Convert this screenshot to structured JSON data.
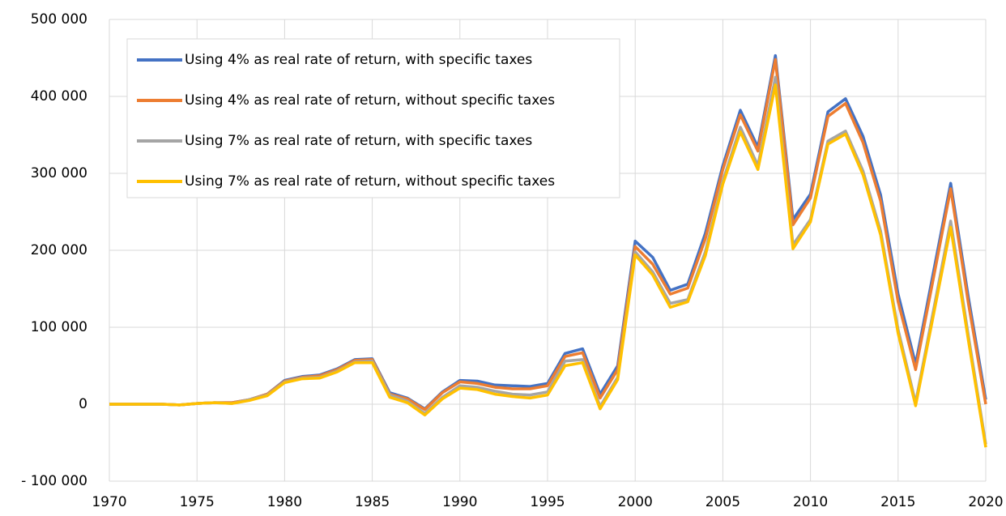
{
  "chart_data": {
    "type": "line",
    "x": [
      1970,
      1971,
      1972,
      1973,
      1974,
      1975,
      1976,
      1977,
      1978,
      1979,
      1980,
      1981,
      1982,
      1983,
      1984,
      1985,
      1986,
      1987,
      1988,
      1989,
      1990,
      1991,
      1992,
      1993,
      1994,
      1995,
      1996,
      1997,
      1998,
      1999,
      2000,
      2001,
      2002,
      2003,
      2004,
      2005,
      2006,
      2007,
      2008,
      2009,
      2010,
      2011,
      2012,
      2013,
      2014,
      2015,
      2016,
      2017,
      2018,
      2019,
      2020
    ],
    "series": [
      {
        "name": "Using 4% as real rate of return, with specific taxes",
        "color": "#4472c4",
        "values": [
          0,
          0,
          0,
          0,
          -1000,
          1000,
          2000,
          2000,
          6000,
          13000,
          31000,
          36000,
          38000,
          46000,
          58000,
          59000,
          15000,
          8000,
          -6000,
          16000,
          31000,
          30000,
          25000,
          24000,
          23000,
          27000,
          66000,
          72000,
          13000,
          50000,
          212000,
          191000,
          148000,
          156000,
          222000,
          310000,
          382000,
          334000,
          453000,
          240000,
          273000,
          380000,
          397000,
          348000,
          272000,
          143000,
          52000,
          170000,
          287000,
          140000,
          6000
        ]
      },
      {
        "name": "Using 4% as real rate of return, without specific taxes",
        "color": "#ed7d31",
        "values": [
          0,
          0,
          0,
          0,
          -1000,
          1000,
          2000,
          2000,
          6000,
          13000,
          30000,
          35000,
          37000,
          45000,
          57000,
          58000,
          13000,
          7000,
          -7000,
          15000,
          29000,
          27000,
          22000,
          20000,
          20000,
          24000,
          62000,
          67000,
          8000,
          45000,
          205000,
          182000,
          143000,
          151000,
          215000,
          305000,
          376000,
          329000,
          448000,
          233000,
          268000,
          374000,
          391000,
          340000,
          264000,
          133000,
          45000,
          162000,
          280000,
          132000,
          0
        ]
      },
      {
        "name": "Using 7% as real rate of return, with specific taxes",
        "color": "#a5a5a5",
        "values": [
          0,
          0,
          0,
          0,
          -1000,
          1000,
          2000,
          1000,
          6000,
          12000,
          29000,
          34000,
          35000,
          43000,
          55000,
          56000,
          12000,
          4000,
          -12000,
          9000,
          24000,
          22000,
          17000,
          13000,
          12000,
          16000,
          56000,
          58000,
          -3000,
          35000,
          198000,
          172000,
          131000,
          136000,
          198000,
          290000,
          360000,
          310000,
          425000,
          207000,
          240000,
          342000,
          355000,
          303000,
          225000,
          97000,
          2000,
          120000,
          238000,
          90000,
          -52000
        ]
      },
      {
        "name": "Using 7% as real rate of return, without specific taxes",
        "color": "#ffc000",
        "values": [
          0,
          0,
          0,
          0,
          -1000,
          1000,
          2000,
          1000,
          5000,
          11000,
          28000,
          33000,
          34000,
          42000,
          54000,
          54000,
          9000,
          2000,
          -14000,
          7000,
          21000,
          19000,
          13000,
          10000,
          8000,
          12000,
          50000,
          54000,
          -6000,
          32000,
          194000,
          168000,
          126000,
          133000,
          193000,
          286000,
          354000,
          305000,
          415000,
          202000,
          237000,
          338000,
          351000,
          298000,
          220000,
          92000,
          -2000,
          114000,
          230000,
          84000,
          -56000
        ]
      }
    ],
    "xlim": [
      1970,
      2020
    ],
    "xticks": [
      1970,
      1975,
      1980,
      1985,
      1990,
      1995,
      2000,
      2005,
      2010,
      2015,
      2020
    ],
    "ylim": [
      -100000,
      500000
    ],
    "yticks": [
      {
        "value": -100000,
        "label": "- 100 000"
      },
      {
        "value": 0,
        "label": "0"
      },
      {
        "value": 100000,
        "label": "100 000"
      },
      {
        "value": 200000,
        "label": "200 000"
      },
      {
        "value": 300000,
        "label": "300 000"
      },
      {
        "value": 400000,
        "label": "400 000"
      },
      {
        "value": 500000,
        "label": "500 000"
      }
    ],
    "grid": true,
    "legend": "top-left"
  }
}
